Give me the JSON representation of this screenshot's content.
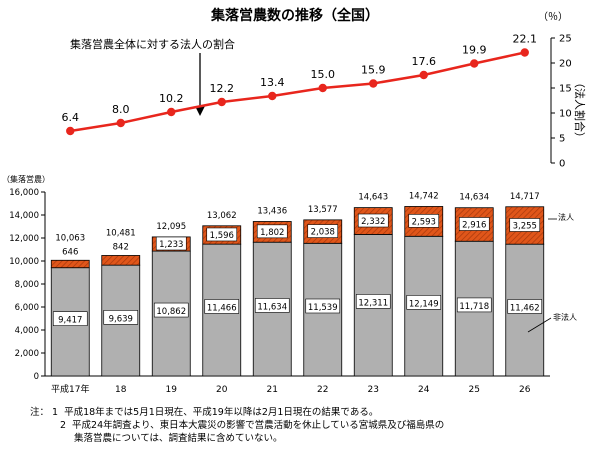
{
  "chart_data": [
    {
      "type": "line",
      "title": "集落営農数の推移（全国）",
      "ylabel": "（法人割合）",
      "yunit": "（％）",
      "ylim": [
        0,
        25
      ],
      "y_ticks": [
        "0",
        "5",
        "10",
        "15",
        "20",
        "25"
      ],
      "annotation": "集落営農全体に対する法人の割合",
      "x": [
        "平成17年",
        "18",
        "19",
        "20",
        "21",
        "22",
        "23",
        "24",
        "25",
        "26"
      ],
      "series": [
        {
          "values": [
            6.4,
            8.0,
            10.2,
            12.2,
            13.4,
            15.0,
            15.9,
            17.6,
            19.9,
            22.1
          ],
          "labels": [
            "6.4",
            "8.0",
            "10.2",
            "12.2",
            "13.4",
            "15.0",
            "15.9",
            "17.6",
            "19.9",
            "22.1"
          ]
        }
      ],
      "colors": {
        "line": "#e8261d",
        "marker": "#e8261d"
      }
    },
    {
      "type": "bar",
      "stacked": true,
      "ylabel": "（集落営農）",
      "ylim": [
        0,
        16000
      ],
      "y_ticks": [
        "0",
        "2,000",
        "4,000",
        "6,000",
        "8,000",
        "10,000",
        "12,000",
        "14,000",
        "16,000"
      ],
      "categories": [
        "平成17年",
        "18",
        "19",
        "20",
        "21",
        "22",
        "23",
        "24",
        "25",
        "26"
      ],
      "series": [
        {
          "name": "非法人",
          "values": [
            9417,
            9639,
            10862,
            11466,
            11634,
            11539,
            12311,
            12149,
            11718,
            11462
          ],
          "labels": [
            "9,417",
            "9,639",
            "10,862",
            "11,466",
            "11,634",
            "11,539",
            "12,311",
            "12,149",
            "11,718",
            "11,462"
          ]
        },
        {
          "name": "法人",
          "values": [
            646,
            842,
            1233,
            1596,
            1802,
            2038,
            2332,
            2593,
            2916,
            3255
          ],
          "labels": [
            "646",
            "842",
            "1,233",
            "1,596",
            "1,802",
            "2,038",
            "2,332",
            "2,593",
            "2,916",
            "3,255"
          ]
        }
      ],
      "totals": [
        10063,
        10481,
        12095,
        13062,
        13436,
        13577,
        14643,
        14742,
        14634,
        14717
      ],
      "total_labels": [
        "10,063",
        "10,481",
        "12,095",
        "13,062",
        "13,436",
        "13,577",
        "14,643",
        "14,742",
        "14,634",
        "14,717"
      ],
      "colors": {
        "non_corp": "#b0b0b0",
        "corp": "#dd4a10",
        "hatch": "#a83208"
      }
    }
  ],
  "notes": {
    "head": "注：",
    "n1_num": "1",
    "n1": "平成18年までは5月1日現在、平成19年以降は2月1日現在の結果である。",
    "n2_num": "2",
    "n2a": "平成24年調査より、東日本大震災の影響で営農活動を休止している宮城県及び福島県の",
    "n2b": "集落営農については、調査結果に含めていない。"
  }
}
